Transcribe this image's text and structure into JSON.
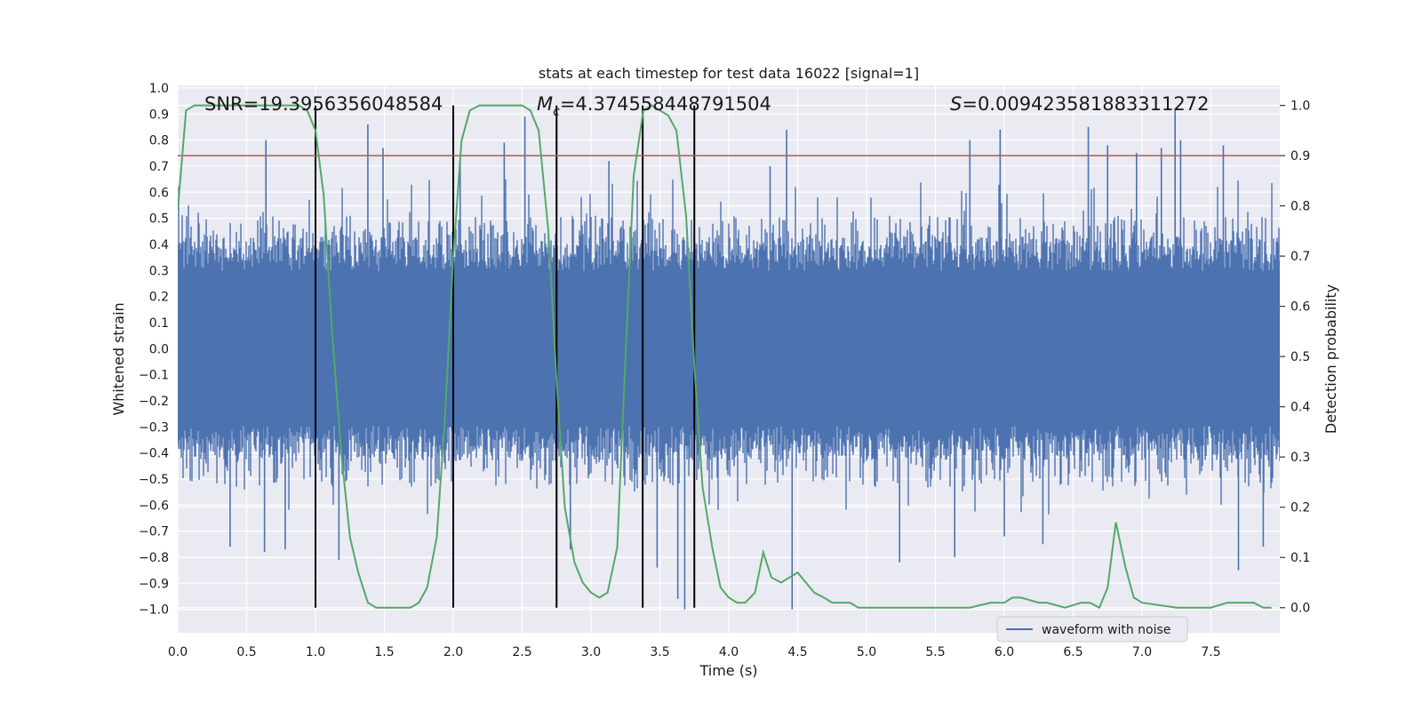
{
  "chart_data": {
    "type": "line",
    "title": "stats at each timestep for test data 16022 [signal=1]",
    "xlabel": "Time (s)",
    "ylabel_left": "Whitened strain",
    "ylabel_right": "Detection probability",
    "xlim": [
      0.0,
      8.0
    ],
    "ylim_left": [
      -1.09,
      1.01
    ],
    "ylim_right": [
      -0.05,
      1.04
    ],
    "x_ticks": [
      "0.0",
      "0.5",
      "1.0",
      "1.5",
      "2.0",
      "2.5",
      "3.0",
      "3.5",
      "4.0",
      "4.5",
      "5.0",
      "5.5",
      "6.0",
      "6.5",
      "7.0",
      "7.5"
    ],
    "y_ticks_left": [
      "1.0",
      "0.9",
      "0.8",
      "0.7",
      "0.6",
      "0.5",
      "0.4",
      "0.3",
      "0.2",
      "0.1",
      "0.0",
      "−0.1",
      "−0.2",
      "−0.3",
      "−0.4",
      "−0.5",
      "−0.6",
      "−0.7",
      "−0.8",
      "−0.9",
      "−1.0"
    ],
    "y_ticks_right": [
      "0.0",
      "0.1",
      "0.2",
      "0.3",
      "0.4",
      "0.5",
      "0.6",
      "0.7",
      "0.8",
      "0.9",
      "1.0"
    ],
    "annotations": {
      "snr": "SNR=19.3956356048584",
      "mc_symbol": "M",
      "mc_sub": "c",
      "mc_value": "=4.374558448791504",
      "s_symbol": "S",
      "s_value": "=0.009423581883311272"
    },
    "legend": {
      "label": "waveform with noise",
      "position": "lower-right"
    },
    "grid": true,
    "colors": {
      "waveform": "#4c72b0",
      "probability": "#55a868",
      "threshold": "#c44e52",
      "markers": "#000000",
      "background": "#eaeaf2"
    },
    "threshold": {
      "axis": "right",
      "value": 0.9
    },
    "vertical_markers": [
      1.0,
      2.0,
      2.75,
      3.375,
      3.75
    ],
    "waveform": {
      "sample_rate_hz": 2048,
      "core_amplitude": 0.33,
      "peaks": [
        {
          "x": 0.64,
          "y": 0.8
        },
        {
          "x": 1.38,
          "y": 0.86
        },
        {
          "x": 1.49,
          "y": 0.77
        },
        {
          "x": 2.05,
          "y": 0.73
        },
        {
          "x": 2.37,
          "y": 0.79
        },
        {
          "x": 2.52,
          "y": 0.89
        },
        {
          "x": 3.13,
          "y": 0.72
        },
        {
          "x": 4.3,
          "y": 0.7
        },
        {
          "x": 4.42,
          "y": 0.84
        },
        {
          "x": 5.75,
          "y": 0.8
        },
        {
          "x": 5.97,
          "y": 0.84
        },
        {
          "x": 6.61,
          "y": 0.85
        },
        {
          "x": 6.75,
          "y": 0.78
        },
        {
          "x": 6.96,
          "y": 0.75
        },
        {
          "x": 7.14,
          "y": 0.77
        },
        {
          "x": 7.24,
          "y": 0.92
        },
        {
          "x": 7.28,
          "y": 0.8
        },
        {
          "x": 7.59,
          "y": 0.78
        }
      ],
      "troughs": [
        {
          "x": 0.38,
          "y": -0.76
        },
        {
          "x": 0.63,
          "y": -0.78
        },
        {
          "x": 0.78,
          "y": -0.77
        },
        {
          "x": 1.17,
          "y": -0.81
        },
        {
          "x": 2.85,
          "y": -0.77
        },
        {
          "x": 3.48,
          "y": -0.84
        },
        {
          "x": 3.63,
          "y": -0.96
        },
        {
          "x": 3.68,
          "y": -1.0
        },
        {
          "x": 4.46,
          "y": -1.0
        },
        {
          "x": 5.24,
          "y": -0.82
        },
        {
          "x": 5.64,
          "y": -0.8
        },
        {
          "x": 6.0,
          "y": -0.72
        },
        {
          "x": 6.28,
          "y": -0.75
        },
        {
          "x": 7.7,
          "y": -0.85
        },
        {
          "x": 7.88,
          "y": -0.76
        }
      ]
    },
    "probability_series": {
      "x": [
        0.0,
        0.06,
        0.12,
        0.19,
        0.25,
        0.31,
        0.38,
        0.44,
        0.5,
        0.56,
        0.62,
        0.69,
        0.75,
        0.81,
        0.88,
        0.94,
        1.0,
        1.06,
        1.12,
        1.19,
        1.25,
        1.31,
        1.38,
        1.44,
        1.5,
        1.56,
        1.62,
        1.69,
        1.75,
        1.81,
        1.88,
        1.94,
        2.0,
        2.06,
        2.12,
        2.19,
        2.25,
        2.31,
        2.38,
        2.44,
        2.5,
        2.56,
        2.62,
        2.69,
        2.75,
        2.81,
        2.88,
        2.94,
        3.0,
        3.06,
        3.12,
        3.19,
        3.25,
        3.31,
        3.38,
        3.44,
        3.5,
        3.56,
        3.62,
        3.69,
        3.75,
        3.81,
        3.88,
        3.94,
        4.0,
        4.06,
        4.12,
        4.19,
        4.25,
        4.31,
        4.38,
        4.44,
        4.5,
        4.56,
        4.62,
        4.69,
        4.75,
        4.81,
        4.88,
        4.94,
        5.0,
        5.1,
        5.25,
        5.5,
        5.75,
        5.9,
        6.0,
        6.06,
        6.12,
        6.25,
        6.31,
        6.44,
        6.56,
        6.62,
        6.69,
        6.75,
        6.81,
        6.88,
        6.94,
        7.0,
        7.25,
        7.5,
        7.62,
        7.75,
        7.81,
        7.88,
        7.94
      ],
      "y": [
        0.79,
        0.99,
        1.0,
        1.0,
        1.0,
        1.0,
        1.0,
        1.0,
        1.0,
        1.0,
        1.0,
        1.0,
        1.0,
        1.0,
        1.0,
        0.99,
        0.95,
        0.82,
        0.55,
        0.3,
        0.14,
        0.07,
        0.01,
        0.0,
        0.0,
        0.0,
        0.0,
        0.0,
        0.01,
        0.04,
        0.14,
        0.38,
        0.7,
        0.93,
        0.99,
        1.0,
        1.0,
        1.0,
        1.0,
        1.0,
        1.0,
        0.99,
        0.95,
        0.75,
        0.45,
        0.2,
        0.09,
        0.05,
        0.03,
        0.02,
        0.03,
        0.12,
        0.5,
        0.86,
        0.99,
        1.0,
        0.99,
        0.98,
        0.95,
        0.78,
        0.48,
        0.24,
        0.12,
        0.04,
        0.02,
        0.01,
        0.01,
        0.03,
        0.11,
        0.06,
        0.05,
        0.06,
        0.07,
        0.05,
        0.03,
        0.02,
        0.01,
        0.01,
        0.01,
        0.0,
        0.0,
        0.0,
        0.0,
        0.0,
        0.0,
        0.01,
        0.01,
        0.02,
        0.02,
        0.01,
        0.01,
        0.0,
        0.01,
        0.01,
        0.0,
        0.04,
        0.17,
        0.08,
        0.02,
        0.01,
        0.0,
        0.0,
        0.01,
        0.01,
        0.01,
        0.0,
        0.0
      ]
    }
  }
}
